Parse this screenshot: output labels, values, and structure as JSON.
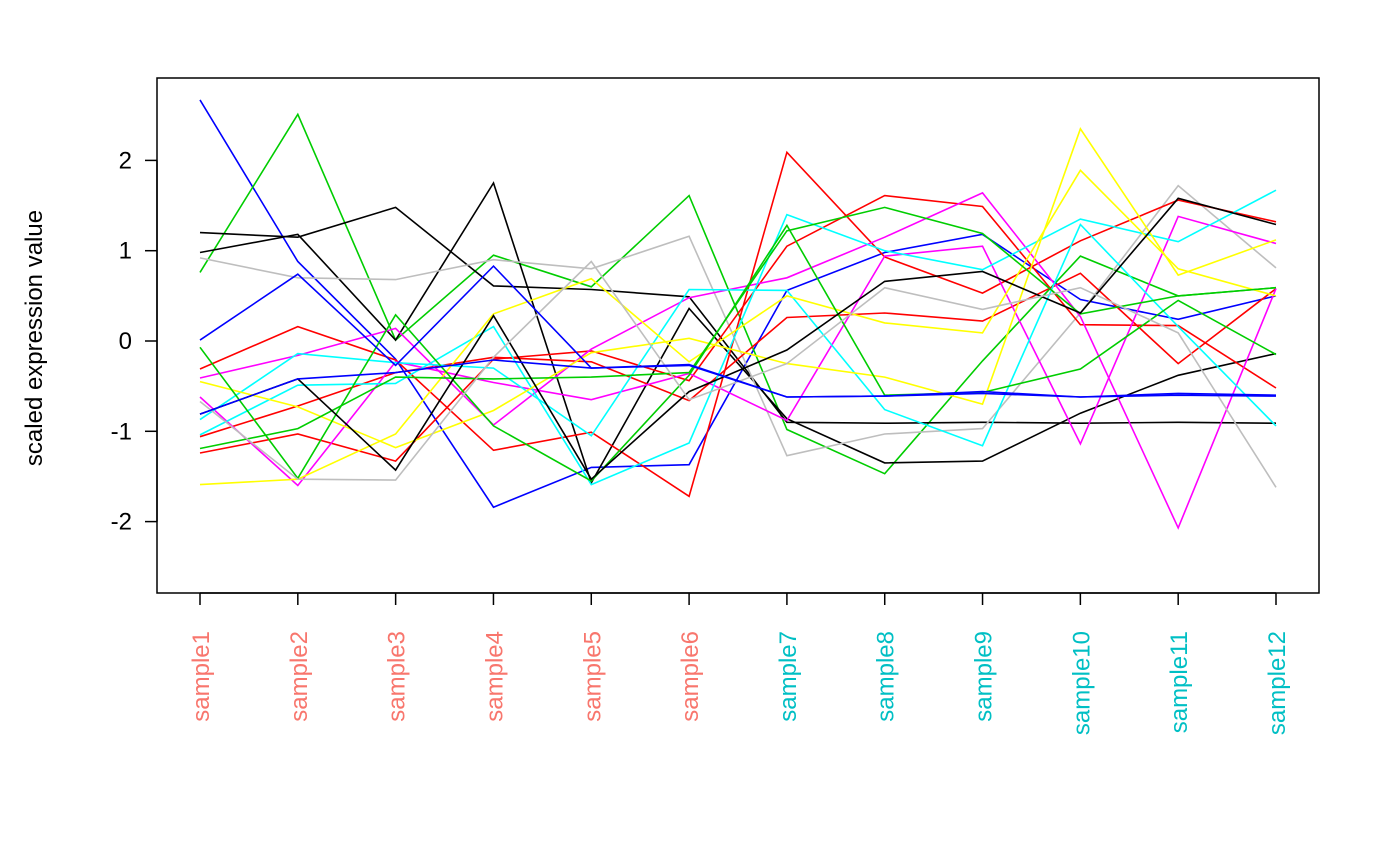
{
  "chart_data": {
    "type": "line",
    "title": "",
    "xlabel": "",
    "ylabel": "scaled expression value",
    "ylim": [
      -2.8,
      2.9
    ],
    "yticks": [
      -2,
      -1,
      0,
      1,
      2
    ],
    "ytick_labels": [
      "-2",
      "-1",
      "0",
      "1",
      "2"
    ],
    "grid": false,
    "legend": "none",
    "categories": [
      "sample1",
      "sample2",
      "sample3",
      "sample4",
      "sample5",
      "sample6",
      "sample7",
      "sample8",
      "sample9",
      "sample10",
      "sample11",
      "sample12"
    ],
    "category_colors": [
      "#F8766D",
      "#F8766D",
      "#F8766D",
      "#F8766D",
      "#F8766D",
      "#F8766D",
      "#00BFC4",
      "#00BFC4",
      "#00BFC4",
      "#00BFC4",
      "#00BFC4",
      "#00BFC4"
    ],
    "series": [
      {
        "color": "#0000FF",
        "values": [
          2.67,
          0.88,
          -0.2,
          -1.84,
          -1.4,
          -1.37,
          0.56,
          0.98,
          1.18,
          0.46,
          0.24,
          0.5
        ]
      },
      {
        "color": "#00CD00",
        "values": [
          0.76,
          2.51,
          0.01,
          0.95,
          0.6,
          1.61,
          -0.98,
          -1.47,
          -0.22,
          0.94,
          0.5,
          0.59
        ]
      },
      {
        "color": "#000000",
        "values": [
          1.2,
          1.15,
          1.48,
          0.61,
          0.57,
          0.49,
          -0.9,
          -0.91,
          -0.9,
          -0.91,
          -0.9,
          -0.91
        ]
      },
      {
        "color": "#000000",
        "values": [
          0.98,
          1.18,
          0.01,
          1.75,
          -1.57,
          0.36,
          -0.86,
          -1.35,
          -1.33,
          -0.8,
          -0.38,
          -0.14
        ]
      },
      {
        "color": "#BEBEBE",
        "values": [
          0.92,
          0.7,
          0.68,
          0.9,
          0.8,
          1.16,
          -1.27,
          -1.03,
          -0.97,
          0.31,
          1.72,
          0.81
        ]
      },
      {
        "color": "#FF0000",
        "values": [
          -0.31,
          0.16,
          -0.21,
          -1.21,
          -1.01,
          -1.72,
          2.09,
          0.93,
          0.53,
          1.11,
          1.56,
          1.32
        ]
      },
      {
        "color": "#FF0000",
        "values": [
          -1.06,
          -0.72,
          -0.35,
          -0.18,
          -0.23,
          -0.66,
          0.26,
          0.31,
          0.22,
          0.75,
          -0.25,
          0.58
        ]
      },
      {
        "color": "#FF0000",
        "values": [
          -1.24,
          -1.03,
          -1.33,
          -0.2,
          -0.11,
          -0.44,
          1.05,
          1.61,
          1.49,
          0.18,
          0.17,
          -0.52
        ]
      },
      {
        "color": "#FF00FF",
        "values": [
          -0.41,
          -0.16,
          0.14,
          -0.93,
          -0.09,
          0.48,
          0.7,
          1.15,
          1.64,
          0.27,
          -2.07,
          0.58
        ]
      },
      {
        "color": "#FF00FF",
        "values": [
          -0.62,
          -1.6,
          -0.23,
          -0.46,
          -0.65,
          -0.36,
          -0.88,
          0.94,
          1.05,
          -1.14,
          1.38,
          1.08
        ]
      },
      {
        "color": "#00FFFF",
        "values": [
          -1.04,
          -0.49,
          -0.47,
          0.16,
          -1.59,
          -1.13,
          1.4,
          1.0,
          0.79,
          1.35,
          1.1,
          1.67
        ]
      },
      {
        "color": "#00FFFF",
        "values": [
          -0.87,
          -0.14,
          -0.24,
          -0.3,
          -1.05,
          0.57,
          0.56,
          -0.76,
          -1.16,
          1.29,
          0.16,
          -0.94
        ]
      },
      {
        "color": "#FFFF00",
        "values": [
          -0.45,
          -0.73,
          -1.18,
          -0.77,
          -0.13,
          0.03,
          -0.25,
          -0.4,
          -0.7,
          2.35,
          0.73,
          1.12
        ]
      },
      {
        "color": "#FFFF00",
        "values": [
          -1.59,
          -1.53,
          -1.03,
          0.3,
          0.69,
          -0.23,
          0.5,
          0.2,
          0.09,
          1.89,
          0.8,
          0.5
        ]
      },
      {
        "color": "#00CD00",
        "values": [
          -0.07,
          -1.52,
          0.29,
          -0.94,
          -1.55,
          -0.38,
          1.28,
          -0.6,
          -0.57,
          -0.31,
          0.45,
          -0.15
        ]
      },
      {
        "color": "#00CD00",
        "values": [
          -1.19,
          -0.97,
          -0.4,
          -0.42,
          -0.4,
          -0.35,
          1.22,
          1.48,
          1.19,
          0.3,
          0.5,
          0.59
        ]
      },
      {
        "color": "#000000",
        "values": [
          -0.81,
          -0.42,
          -1.43,
          0.28,
          -1.53,
          -0.56,
          -0.1,
          0.66,
          0.77,
          0.31,
          1.58,
          1.29
        ]
      },
      {
        "color": "#BEBEBE",
        "values": [
          -0.67,
          -1.53,
          -1.54,
          -0.18,
          0.88,
          -0.65,
          -0.25,
          0.59,
          0.35,
          0.59,
          0.09,
          -1.62
        ]
      },
      {
        "color": "#0000FF",
        "values": [
          0.01,
          0.74,
          -0.27,
          0.83,
          -0.3,
          -0.27,
          -0.62,
          -0.61,
          -0.56,
          -0.62,
          -0.58,
          -0.6
        ]
      },
      {
        "color": "#0000FF",
        "values": [
          -0.81,
          -0.42,
          -0.35,
          -0.21,
          -0.3,
          -0.26,
          -0.62,
          -0.61,
          -0.58,
          -0.62,
          -0.6,
          -0.61
        ]
      }
    ]
  }
}
